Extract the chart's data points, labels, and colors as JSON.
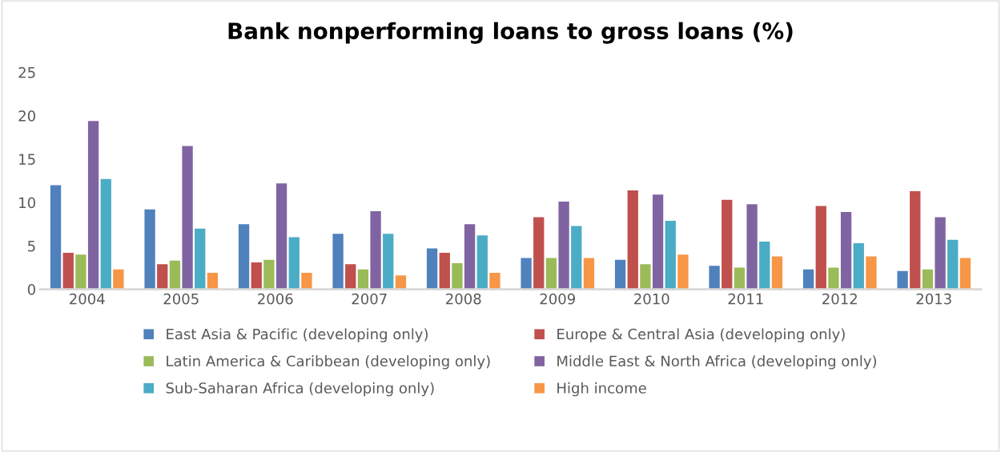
{
  "chart_data": {
    "type": "bar",
    "title": "Bank nonperforming loans to gross loans (%)",
    "categories": [
      "2004",
      "2005",
      "2006",
      "2007",
      "2008",
      "2009",
      "2010",
      "2011",
      "2012",
      "2013"
    ],
    "series": [
      {
        "name": "East Asia & Pacific (developing only)",
        "color": "#4f81bd",
        "values": [
          12.0,
          9.2,
          7.5,
          6.4,
          4.7,
          3.6,
          3.4,
          2.7,
          2.3,
          2.1
        ]
      },
      {
        "name": "Europe & Central Asia (developing only)",
        "color": "#c0504d",
        "values": [
          4.2,
          2.9,
          3.1,
          2.9,
          4.2,
          8.3,
          11.4,
          10.3,
          9.6,
          11.3
        ]
      },
      {
        "name": "Latin America & Caribbean (developing only)",
        "color": "#9bbb59",
        "values": [
          4.0,
          3.3,
          3.4,
          2.3,
          3.0,
          3.6,
          2.9,
          2.5,
          2.5,
          2.3
        ]
      },
      {
        "name": "Middle East & North Africa (developing only)",
        "color": "#8064a2",
        "values": [
          19.4,
          16.5,
          12.2,
          9.0,
          7.5,
          10.1,
          10.9,
          9.8,
          8.9,
          8.3
        ]
      },
      {
        "name": "Sub-Saharan Africa (developing only)",
        "color": "#4bacc6",
        "values": [
          12.7,
          7.0,
          6.0,
          6.4,
          6.2,
          7.3,
          7.9,
          5.5,
          5.3,
          5.7
        ]
      },
      {
        "name": "High income",
        "color": "#f79646",
        "values": [
          2.3,
          1.9,
          1.9,
          1.6,
          1.9,
          3.6,
          4.0,
          3.8,
          3.8,
          3.6
        ]
      }
    ],
    "ylim": [
      0,
      25
    ],
    "yticks": [
      0,
      5,
      10,
      15,
      20,
      25
    ],
    "grid": false,
    "legend": "bottom"
  }
}
